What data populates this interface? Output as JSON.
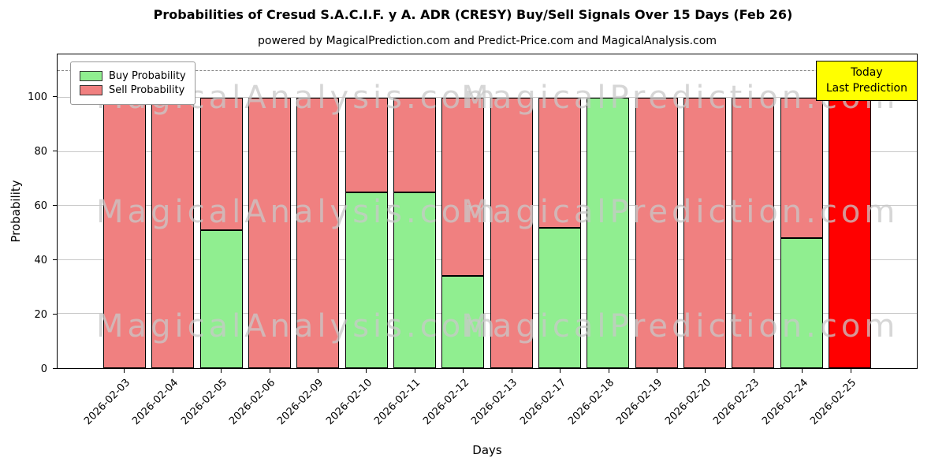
{
  "title": "Probabilities of Cresud S.A.C.I.F. y A. ADR (CRESY) Buy/Sell Signals Over 15 Days (Feb 26)",
  "subtitle": "powered by MagicalPrediction.com and Predict-Price.com and MagicalAnalysis.com",
  "xlabel": "Days",
  "ylabel": "Probability",
  "annotation": {
    "lines": [
      "Today",
      "Last Prediction"
    ],
    "bg": "#FFFF00"
  },
  "watermarks": [
    "MagicalAnalysis.com",
    "MagicalPrediction.com"
  ],
  "chart_data": {
    "type": "bar",
    "stacked": true,
    "title": "Probabilities of Cresud S.A.C.I.F. y A. ADR (CRESY) Buy/Sell Signals Over 15 Days (Feb 26)",
    "xlabel": "Days",
    "ylabel": "Probability",
    "categories": [
      "2026-02-03",
      "2026-02-04",
      "2026-02-05",
      "2026-02-06",
      "2026-02-09",
      "2026-02-10",
      "2026-02-11",
      "2026-02-12",
      "2026-02-13",
      "2026-02-17",
      "2026-02-18",
      "2026-02-19",
      "2026-02-20",
      "2026-02-23",
      "2026-02-24",
      "2026-02-25"
    ],
    "series": [
      {
        "name": "Buy Probability",
        "color": "#90EE90",
        "values": [
          0,
          0,
          51,
          0,
          0,
          65,
          65,
          34,
          0,
          52,
          100,
          0,
          0,
          0,
          48,
          0
        ]
      },
      {
        "name": "Sell Probability",
        "color": "#F08080",
        "values": [
          100,
          100,
          49,
          100,
          100,
          35,
          35,
          66,
          100,
          48,
          0,
          100,
          100,
          100,
          52,
          100
        ]
      }
    ],
    "today_index": 15,
    "today_color": "#FF0000",
    "ylim": [
      0,
      116
    ],
    "yticks": [
      0,
      20,
      40,
      60,
      80,
      100
    ],
    "dashed_line_y": 110,
    "grid": true,
    "legend_position": "upper left"
  }
}
